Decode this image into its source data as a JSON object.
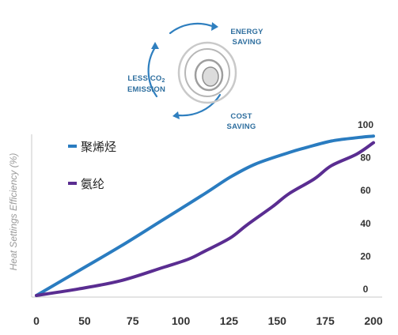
{
  "badge": {
    "energy_line1": "ENERGY",
    "energy_line2": "SAVING",
    "cost_line1": "COST",
    "cost_line2": "SAVING",
    "co2_line1": "LESS CO",
    "co2_sub": "2",
    "co2_line2": "EMISSION",
    "accent": "#2f7fbf"
  },
  "chart_data": {
    "type": "line",
    "title": "",
    "xlabel": "",
    "ylabel": "Heat Settings Efficiency (%)",
    "x_ticks": [
      0,
      50,
      75,
      100,
      125,
      150,
      175,
      200
    ],
    "y_ticks": [
      0,
      20,
      40,
      60,
      80,
      100
    ],
    "xlim": [
      0,
      200
    ],
    "ylim": [
      0,
      100
    ],
    "grid": false,
    "legend_position": "top-left",
    "series": [
      {
        "name": "聚烯烃",
        "color": "#2a7cc0",
        "points": [
          [
            0,
            0
          ],
          [
            25,
            15
          ],
          [
            50,
            30
          ],
          [
            75,
            46
          ],
          [
            100,
            62
          ],
          [
            115,
            72
          ],
          [
            130,
            80
          ],
          [
            150,
            87
          ],
          [
            160,
            90
          ],
          [
            175,
            94
          ],
          [
            190,
            96
          ],
          [
            200,
            97
          ]
        ]
      },
      {
        "name": "氨纶",
        "color": "#5a2d91",
        "points": [
          [
            0,
            0
          ],
          [
            25,
            4
          ],
          [
            50,
            9
          ],
          [
            75,
            17
          ],
          [
            90,
            22
          ],
          [
            100,
            27
          ],
          [
            115,
            35
          ],
          [
            125,
            43
          ],
          [
            140,
            54
          ],
          [
            150,
            62
          ],
          [
            165,
            71
          ],
          [
            175,
            79
          ],
          [
            190,
            86
          ],
          [
            200,
            93
          ]
        ]
      }
    ]
  }
}
